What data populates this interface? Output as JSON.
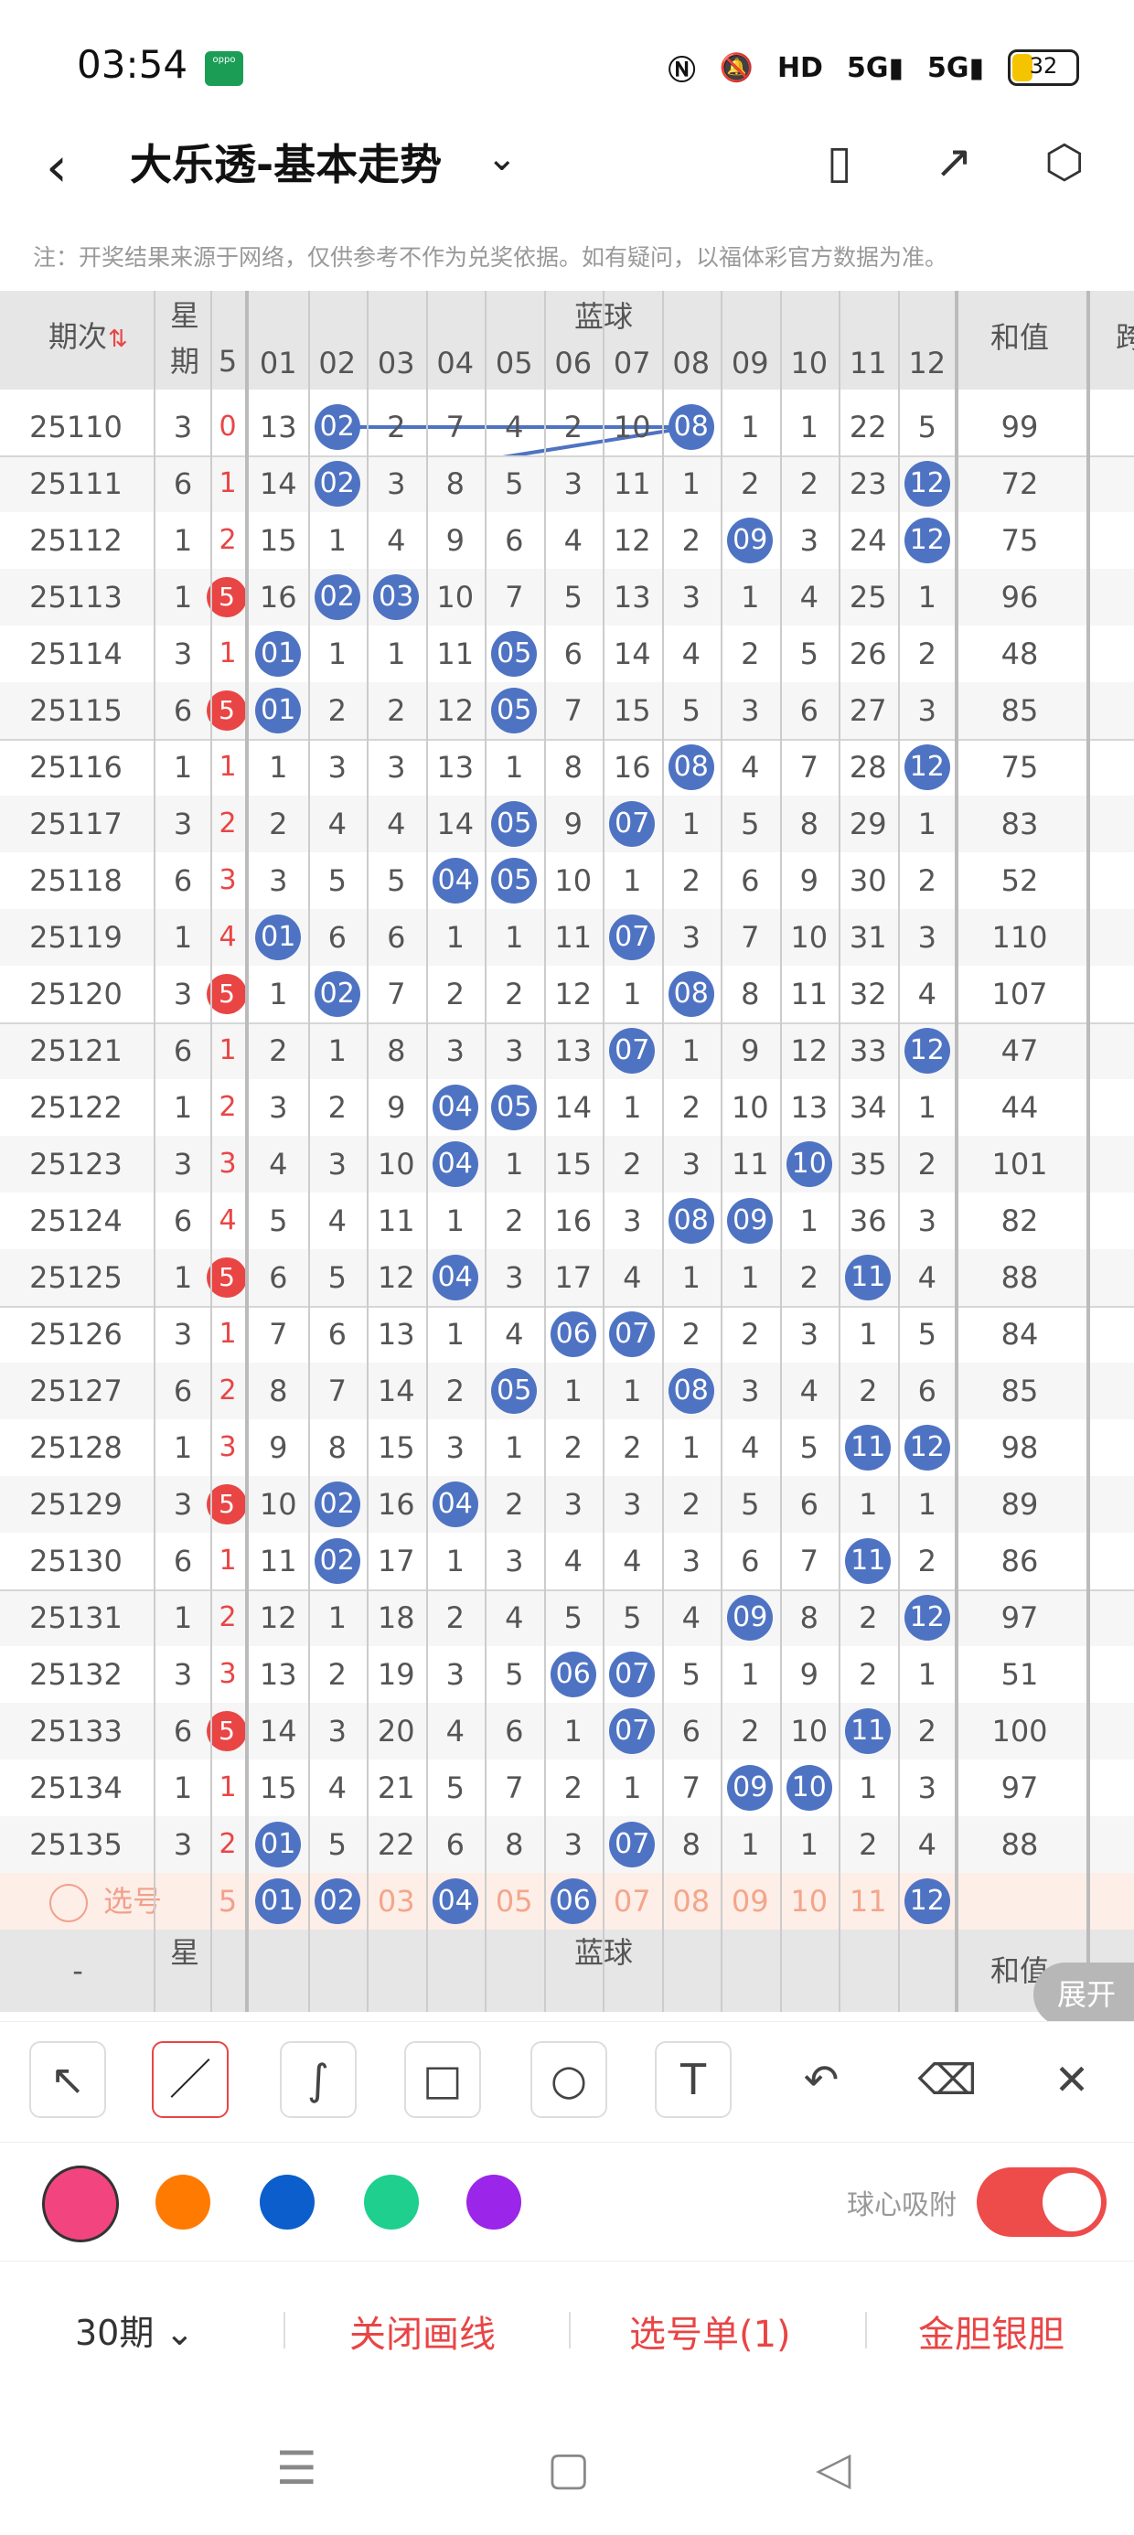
{
  "status_bar": {
    "time": "03:54",
    "carrier_badge": "oppo",
    "icons": [
      "nfc-icon",
      "mute-icon",
      "hd-icon",
      "signal-5g-icon",
      "signal-5g-icon"
    ],
    "battery": "32"
  },
  "header": {
    "title": "大乐透-基本走势",
    "notice": "注：开奖结果来源于网络，仅供参考不作为兑奖依据。如有疑问，以福体彩官方数据为准。"
  },
  "table": {
    "col_issue": "期次",
    "col_week": "星期",
    "col_blue": "蓝球",
    "col_sum": "和值",
    "col_extra": "跨",
    "front_partial": "5",
    "blue_numbers": [
      "01",
      "02",
      "03",
      "04",
      "05",
      "06",
      "07",
      "08",
      "09",
      "10",
      "11",
      "12"
    ],
    "rows": [
      {
        "issue": "25110",
        "week": "3",
        "front": "0",
        "red": false,
        "cells": [
          "13",
          "02",
          "2",
          "7",
          "4",
          "2",
          "10",
          "08",
          "1",
          "1",
          "22",
          "5"
        ],
        "balls": [
          1,
          7
        ],
        "sum": "99"
      },
      {
        "issue": "25111",
        "week": "6",
        "front": "1",
        "red": false,
        "cells": [
          "14",
          "02",
          "3",
          "8",
          "5",
          "3",
          "11",
          "1",
          "2",
          "2",
          "23",
          "12"
        ],
        "balls": [
          1,
          11
        ],
        "sum": "72"
      },
      {
        "issue": "25112",
        "week": "1",
        "front": "2",
        "red": false,
        "cells": [
          "15",
          "1",
          "4",
          "9",
          "6",
          "4",
          "12",
          "2",
          "09",
          "3",
          "24",
          "12"
        ],
        "balls": [
          8,
          11
        ],
        "sum": "75"
      },
      {
        "issue": "25113",
        "week": "1",
        "front": "5",
        "red": true,
        "cells": [
          "16",
          "02",
          "03",
          "10",
          "7",
          "5",
          "13",
          "3",
          "1",
          "4",
          "25",
          "1"
        ],
        "balls": [
          1,
          2
        ],
        "sum": "96"
      },
      {
        "issue": "25114",
        "week": "3",
        "front": "1",
        "red": false,
        "cells": [
          "01",
          "1",
          "1",
          "11",
          "05",
          "6",
          "14",
          "4",
          "2",
          "5",
          "26",
          "2"
        ],
        "balls": [
          0,
          4
        ],
        "sum": "48"
      },
      {
        "issue": "25115",
        "week": "6",
        "front": "5",
        "red": true,
        "cells": [
          "01",
          "2",
          "2",
          "12",
          "05",
          "7",
          "15",
          "5",
          "3",
          "6",
          "27",
          "3"
        ],
        "balls": [
          0,
          4
        ],
        "sum": "85"
      },
      {
        "issue": "25116",
        "week": "1",
        "front": "1",
        "red": false,
        "cells": [
          "1",
          "3",
          "3",
          "13",
          "1",
          "8",
          "16",
          "08",
          "4",
          "7",
          "28",
          "12"
        ],
        "balls": [
          7,
          11
        ],
        "sum": "75"
      },
      {
        "issue": "25117",
        "week": "3",
        "front": "2",
        "red": false,
        "cells": [
          "2",
          "4",
          "4",
          "14",
          "05",
          "9",
          "07",
          "1",
          "5",
          "8",
          "29",
          "1"
        ],
        "balls": [
          4,
          6
        ],
        "sum": "83"
      },
      {
        "issue": "25118",
        "week": "6",
        "front": "3",
        "red": false,
        "cells": [
          "3",
          "5",
          "5",
          "04",
          "05",
          "10",
          "1",
          "2",
          "6",
          "9",
          "30",
          "2"
        ],
        "balls": [
          3,
          4
        ],
        "sum": "52"
      },
      {
        "issue": "25119",
        "week": "1",
        "front": "4",
        "red": false,
        "cells": [
          "01",
          "6",
          "6",
          "1",
          "1",
          "11",
          "07",
          "3",
          "7",
          "10",
          "31",
          "3"
        ],
        "balls": [
          0,
          6
        ],
        "sum": "110"
      },
      {
        "issue": "25120",
        "week": "3",
        "front": "5",
        "red": true,
        "cells": [
          "1",
          "02",
          "7",
          "2",
          "2",
          "12",
          "1",
          "08",
          "8",
          "11",
          "32",
          "4"
        ],
        "balls": [
          1,
          7
        ],
        "sum": "107"
      },
      {
        "issue": "25121",
        "week": "6",
        "front": "1",
        "red": false,
        "cells": [
          "2",
          "1",
          "8",
          "3",
          "3",
          "13",
          "07",
          "1",
          "9",
          "12",
          "33",
          "12"
        ],
        "balls": [
          6,
          11
        ],
        "sum": "47"
      },
      {
        "issue": "25122",
        "week": "1",
        "front": "2",
        "red": false,
        "cells": [
          "3",
          "2",
          "9",
          "04",
          "05",
          "14",
          "1",
          "2",
          "10",
          "13",
          "34",
          "1"
        ],
        "balls": [
          3,
          4
        ],
        "sum": "44"
      },
      {
        "issue": "25123",
        "week": "3",
        "front": "3",
        "red": false,
        "cells": [
          "4",
          "3",
          "10",
          "04",
          "1",
          "15",
          "2",
          "3",
          "11",
          "10",
          "35",
          "2"
        ],
        "balls": [
          3,
          9
        ],
        "sum": "101"
      },
      {
        "issue": "25124",
        "week": "6",
        "front": "4",
        "red": false,
        "cells": [
          "5",
          "4",
          "11",
          "1",
          "2",
          "16",
          "3",
          "08",
          "09",
          "1",
          "36",
          "3"
        ],
        "balls": [
          7,
          8
        ],
        "sum": "82"
      },
      {
        "issue": "25125",
        "week": "1",
        "front": "5",
        "red": true,
        "cells": [
          "6",
          "5",
          "12",
          "04",
          "3",
          "17",
          "4",
          "1",
          "1",
          "2",
          "11",
          "4"
        ],
        "balls": [
          3,
          10
        ],
        "sum": "88"
      },
      {
        "issue": "25126",
        "week": "3",
        "front": "1",
        "red": false,
        "cells": [
          "7",
          "6",
          "13",
          "1",
          "4",
          "06",
          "07",
          "2",
          "2",
          "3",
          "1",
          "5"
        ],
        "balls": [
          5,
          6
        ],
        "sum": "84"
      },
      {
        "issue": "25127",
        "week": "6",
        "front": "2",
        "red": false,
        "cells": [
          "8",
          "7",
          "14",
          "2",
          "05",
          "1",
          "1",
          "08",
          "3",
          "4",
          "2",
          "6"
        ],
        "balls": [
          4,
          7
        ],
        "sum": "85"
      },
      {
        "issue": "25128",
        "week": "1",
        "front": "3",
        "red": false,
        "cells": [
          "9",
          "8",
          "15",
          "3",
          "1",
          "2",
          "2",
          "1",
          "4",
          "5",
          "11",
          "12"
        ],
        "balls": [
          10,
          11
        ],
        "sum": "98"
      },
      {
        "issue": "25129",
        "week": "3",
        "front": "5",
        "red": true,
        "cells": [
          "10",
          "02",
          "16",
          "04",
          "2",
          "3",
          "3",
          "2",
          "5",
          "6",
          "1",
          "1"
        ],
        "balls": [
          1,
          3
        ],
        "sum": "89"
      },
      {
        "issue": "25130",
        "week": "6",
        "front": "1",
        "red": false,
        "cells": [
          "11",
          "02",
          "17",
          "1",
          "3",
          "4",
          "4",
          "3",
          "6",
          "7",
          "11",
          "2"
        ],
        "balls": [
          1,
          10
        ],
        "sum": "86"
      },
      {
        "issue": "25131",
        "week": "1",
        "front": "2",
        "red": false,
        "cells": [
          "12",
          "1",
          "18",
          "2",
          "4",
          "5",
          "5",
          "4",
          "09",
          "8",
          "2",
          "12"
        ],
        "balls": [
          8,
          11
        ],
        "sum": "97"
      },
      {
        "issue": "25132",
        "week": "3",
        "front": "3",
        "red": false,
        "cells": [
          "13",
          "2",
          "19",
          "3",
          "5",
          "06",
          "07",
          "5",
          "1",
          "9",
          "2",
          "1"
        ],
        "balls": [
          5,
          6
        ],
        "sum": "51"
      },
      {
        "issue": "25133",
        "week": "6",
        "front": "5",
        "red": true,
        "cells": [
          "14",
          "3",
          "20",
          "4",
          "6",
          "1",
          "07",
          "6",
          "2",
          "10",
          "11",
          "2"
        ],
        "balls": [
          6,
          10
        ],
        "sum": "100"
      },
      {
        "issue": "25134",
        "week": "1",
        "front": "1",
        "red": false,
        "cells": [
          "15",
          "4",
          "21",
          "5",
          "7",
          "2",
          "1",
          "7",
          "09",
          "10",
          "1",
          "3"
        ],
        "balls": [
          8,
          9
        ],
        "sum": "97"
      },
      {
        "issue": "25135",
        "week": "3",
        "front": "2",
        "red": false,
        "cells": [
          "01",
          "5",
          "22",
          "6",
          "8",
          "3",
          "07",
          "8",
          "1",
          "1",
          "2",
          "4"
        ],
        "balls": [
          0,
          6
        ],
        "sum": "88"
      }
    ],
    "select_row": {
      "label": "选号",
      "front": "5",
      "numbers": [
        "01",
        "02",
        "03",
        "04",
        "05",
        "06",
        "07",
        "08",
        "09",
        "10",
        "11",
        "12"
      ],
      "selected": [
        0,
        1,
        3,
        5,
        11
      ]
    },
    "footer": {
      "issue": "-",
      "week": "星期",
      "blue": "蓝球",
      "sum": "和值"
    }
  },
  "expand_label": "展开",
  "toolbar": {
    "tools": [
      "arrow-tool",
      "line-tool",
      "curve-tool",
      "rectangle-tool",
      "circle-tool",
      "text-tool",
      "undo",
      "eraser-tool",
      "clear-tool"
    ]
  },
  "colors": {
    "swatches": [
      "#f2457f",
      "#ff7a00",
      "#0b5ecb",
      "#1fcf8e",
      "#9b25e8"
    ],
    "blue_ball": "#4f73c3",
    "red_accent": "#e94545",
    "pen": "#f2457f"
  },
  "snap": {
    "label": "球心吸附",
    "on": true
  },
  "actions": {
    "period": "30期",
    "close_line": "关闭画线",
    "select_list": "选号单(1)",
    "golden": "金胆银胆"
  }
}
